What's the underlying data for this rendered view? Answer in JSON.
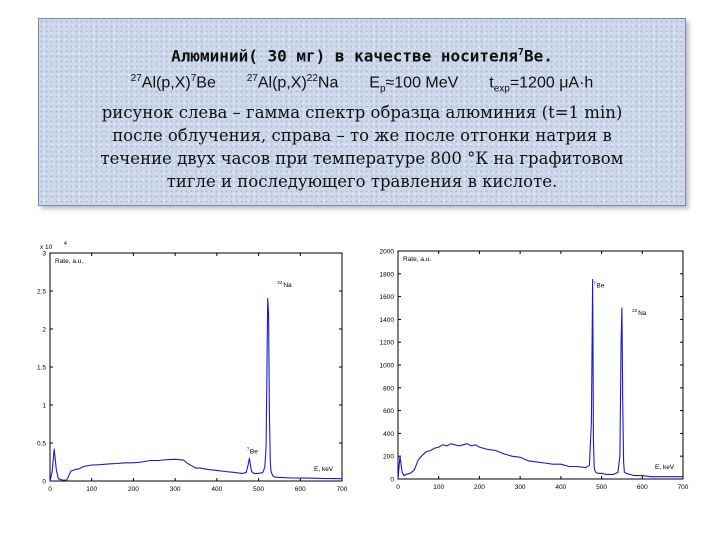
{
  "header": {
    "title": "Алюминий( 30 мг) в качестве носителя",
    "title_suffix": "Be.",
    "title_sup": "7",
    "formula": {
      "r1_pre": "27",
      "r1_body": "Al(p,X)",
      "r1_sup": "7",
      "r1_end": "Be",
      "r2_pre": "27",
      "r2_body": "Al(p,X)",
      "r2_sup": "22",
      "r2_end": "Na",
      "ep": "E",
      "ep_sub": "p",
      "ep_val": "≈100 MeV",
      "t": "t",
      "t_sub": "exp",
      "t_val": "=1200 μA·h"
    },
    "desc_lines": [
      "рисунок слева – гамма спектр образца алюминия (t=1 min)",
      "после облучения, справа – то же после отгонки натрия в",
      "течение двух часов при температуре 800 °К на графитовом",
      "тигле и последующего травления в кислоте."
    ]
  },
  "colors": {
    "line": "#1a1ad6",
    "axis": "#000000",
    "box_bg": "#cdd8ea"
  },
  "chart_data": [
    {
      "type": "line",
      "ylabel": "Rate, a.u.",
      "xlabel": "E, keV",
      "exponent_label": "x 10",
      "exponent_sup": "4",
      "xlim": [
        0,
        700
      ],
      "ylim": [
        0,
        30000
      ],
      "xticks": [
        "0",
        "100",
        "200",
        "300",
        "400",
        "500",
        "600",
        "700"
      ],
      "yticks": [
        "0",
        "0.5",
        "1",
        "1.5",
        "2",
        "2.5",
        "3"
      ],
      "annotations": [
        {
          "text": "Na",
          "sup": "22",
          "x": 545,
          "y": 25500
        },
        {
          "text": "Be",
          "sup": "7",
          "x": 472,
          "y": 3600
        }
      ],
      "series": [
        {
          "x": [
            0,
            5,
            10,
            15,
            20,
            30,
            40,
            50,
            60,
            70,
            80,
            100,
            120,
            140,
            160,
            180,
            200,
            220,
            240,
            260,
            280,
            300,
            320,
            330,
            340,
            350,
            360,
            380,
            400,
            420,
            440,
            460,
            470,
            475,
            478,
            480,
            483,
            486,
            490,
            500,
            510,
            515,
            518,
            520,
            522,
            524,
            526,
            528,
            530,
            535,
            540,
            560,
            580,
            600,
            620,
            640,
            660,
            680,
            700
          ],
          "y": [
            0,
            1200,
            4200,
            1500,
            300,
            100,
            100,
            1300,
            1500,
            1600,
            1900,
            2100,
            2150,
            2250,
            2300,
            2400,
            2400,
            2500,
            2700,
            2700,
            2800,
            2850,
            2750,
            2300,
            2000,
            1700,
            1700,
            1500,
            1400,
            1250,
            1150,
            1000,
            1100,
            2100,
            3000,
            2300,
            1300,
            1100,
            1000,
            1000,
            1100,
            1800,
            4500,
            14000,
            24000,
            22000,
            9000,
            2500,
            1200,
            600,
            500,
            450,
            400,
            380,
            380,
            350,
            330,
            320,
            300
          ]
        }
      ]
    },
    {
      "type": "line",
      "ylabel": "Rate, a.u.",
      "xlabel": "E, keV",
      "xlim": [
        0,
        700
      ],
      "ylim": [
        0,
        2000
      ],
      "xticks": [
        "0",
        "100",
        "200",
        "300",
        "400",
        "500",
        "600",
        "700"
      ],
      "yticks": [
        "0",
        "200",
        "400",
        "600",
        "800",
        "1000",
        "1200",
        "1400",
        "1600",
        "1800",
        "2000"
      ],
      "annotations": [
        {
          "text": "Be",
          "sup": "7",
          "x": 480,
          "y": 1680
        },
        {
          "text": "Na",
          "sup": "22",
          "x": 575,
          "y": 1440
        }
      ],
      "series": [
        {
          "x": [
            0,
            5,
            10,
            15,
            20,
            30,
            40,
            50,
            60,
            70,
            80,
            90,
            100,
            110,
            120,
            130,
            140,
            150,
            160,
            170,
            180,
            190,
            200,
            220,
            240,
            260,
            280,
            300,
            320,
            340,
            360,
            380,
            400,
            420,
            440,
            460,
            470,
            475,
            477,
            478,
            479,
            480,
            482,
            484,
            486,
            490,
            500,
            510,
            520,
            530,
            540,
            545,
            548,
            550,
            552,
            554,
            556,
            560,
            570,
            580,
            600,
            620,
            640,
            660,
            680,
            700
          ],
          "y": [
            0,
            200,
            60,
            30,
            40,
            50,
            80,
            170,
            210,
            240,
            250,
            270,
            280,
            300,
            290,
            310,
            300,
            290,
            300,
            310,
            290,
            300,
            280,
            260,
            250,
            220,
            200,
            190,
            160,
            150,
            140,
            130,
            130,
            110,
            110,
            100,
            120,
            500,
            1300,
            1750,
            1200,
            350,
            100,
            70,
            60,
            50,
            50,
            40,
            40,
            40,
            60,
            200,
            1200,
            1500,
            700,
            150,
            60,
            50,
            40,
            30,
            30,
            20,
            20,
            20,
            20,
            20
          ]
        }
      ]
    }
  ]
}
